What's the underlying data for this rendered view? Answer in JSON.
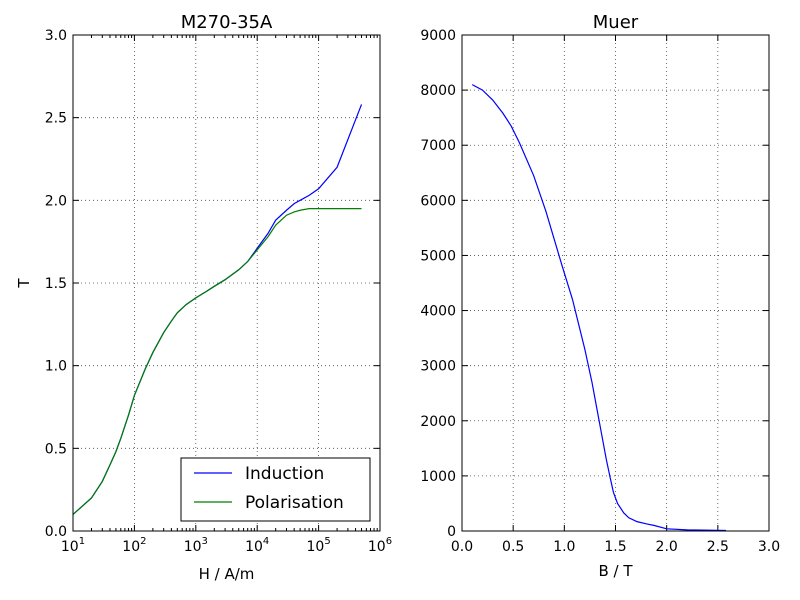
{
  "chart_data": [
    {
      "type": "line",
      "title": "M270-35A",
      "xlabel": "H / A/m",
      "ylabel": "T",
      "xscale": "log",
      "xlim": [
        10,
        1000000
      ],
      "ylim": [
        0,
        3.0
      ],
      "xtick_labels": [
        {
          "base": "10",
          "exp": "1"
        },
        {
          "base": "10",
          "exp": "2"
        },
        {
          "base": "10",
          "exp": "3"
        },
        {
          "base": "10",
          "exp": "4"
        },
        {
          "base": "10",
          "exp": "5"
        },
        {
          "base": "10",
          "exp": "6"
        }
      ],
      "yticks": [
        "0.0",
        "0.5",
        "1.0",
        "1.5",
        "2.0",
        "2.5",
        "3.0"
      ],
      "grid": true,
      "legend": "lower-right",
      "series": [
        {
          "name": "Induction",
          "color": "#0000ff",
          "x": [
            10,
            20,
            30,
            40,
            50,
            60,
            80,
            100,
            150,
            200,
            300,
            400,
            500,
            700,
            1000,
            1500,
            2000,
            3000,
            5000,
            7000,
            10000,
            15000,
            20000,
            30000,
            40000,
            50000,
            70000,
            100000,
            200000,
            500000
          ],
          "y": [
            0.1,
            0.2,
            0.3,
            0.4,
            0.48,
            0.56,
            0.7,
            0.82,
            0.98,
            1.08,
            1.2,
            1.27,
            1.32,
            1.37,
            1.41,
            1.45,
            1.48,
            1.52,
            1.58,
            1.63,
            1.71,
            1.8,
            1.88,
            1.94,
            1.98,
            2.0,
            2.03,
            2.07,
            2.2,
            2.58
          ]
        },
        {
          "name": "Polarisation",
          "color": "#007f00",
          "x": [
            10,
            20,
            30,
            40,
            50,
            60,
            80,
            100,
            150,
            200,
            300,
            400,
            500,
            700,
            1000,
            1500,
            2000,
            3000,
            5000,
            7000,
            10000,
            15000,
            20000,
            30000,
            40000,
            50000,
            70000,
            100000,
            200000,
            500000
          ],
          "y": [
            0.1,
            0.2,
            0.3,
            0.4,
            0.48,
            0.56,
            0.7,
            0.82,
            0.98,
            1.08,
            1.2,
            1.27,
            1.32,
            1.37,
            1.41,
            1.45,
            1.48,
            1.52,
            1.58,
            1.63,
            1.7,
            1.78,
            1.85,
            1.91,
            1.93,
            1.94,
            1.95,
            1.95,
            1.95,
            1.95
          ]
        }
      ]
    },
    {
      "type": "line",
      "title": "Muer",
      "xlabel": "B / T",
      "ylabel": "",
      "xlim": [
        0,
        3.0
      ],
      "ylim": [
        0,
        9000
      ],
      "xticks": [
        "0.0",
        "0.5",
        "1.0",
        "1.5",
        "2.0",
        "2.5",
        "3.0"
      ],
      "yticks": [
        "0",
        "1000",
        "2000",
        "3000",
        "4000",
        "5000",
        "6000",
        "7000",
        "8000",
        "9000"
      ],
      "grid": true,
      "series": [
        {
          "color": "#0000ff",
          "x": [
            0.1,
            0.2,
            0.3,
            0.4,
            0.48,
            0.56,
            0.7,
            0.82,
            0.98,
            1.08,
            1.2,
            1.27,
            1.32,
            1.37,
            1.41,
            1.45,
            1.48,
            1.52,
            1.58,
            1.63,
            1.71,
            1.8,
            1.88,
            2.0,
            2.2,
            2.58
          ],
          "y": [
            8100,
            8000,
            7820,
            7580,
            7350,
            7050,
            6450,
            5800,
            4800,
            4200,
            3300,
            2700,
            2200,
            1700,
            1300,
            950,
            700,
            500,
            330,
            240,
            170,
            130,
            100,
            40,
            20,
            10
          ]
        }
      ]
    }
  ]
}
